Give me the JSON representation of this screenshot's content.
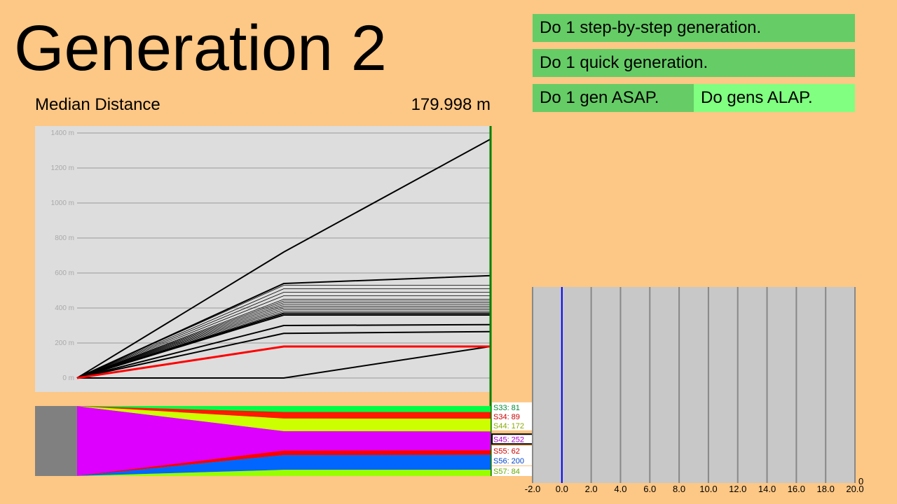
{
  "header": {
    "title": "Generation 2"
  },
  "buttons": {
    "step": "Do 1 step-by-step generation.",
    "quick": "Do 1 quick generation.",
    "asap": "Do 1 gen ASAP.",
    "alap": "Do gens ALAP."
  },
  "stats": {
    "median_label": "Median Distance",
    "median_value": "179.998 m"
  },
  "colors": {
    "background": "#FDC785",
    "button": "#66CC66",
    "button_active": "#80FF80",
    "chart_bg": "#DDDDDD",
    "species_bg": "#808080",
    "histogram_bg": "#C8C8C8",
    "median_line": "#FF0000",
    "current_gen_marker": "#008000",
    "histogram_marker": "#0000FF"
  },
  "chart_data": [
    {
      "type": "line",
      "title": "",
      "x": [
        0,
        1,
        2
      ],
      "ylabel": "",
      "yticks": [
        "0 m",
        "200 m",
        "400 m",
        "600 m",
        "800 m",
        "1000 m",
        "1200 m",
        "1400 m"
      ],
      "ylim": [
        0,
        1440
      ],
      "series": [
        {
          "values": [
            0,
            720,
            1365
          ],
          "style": "thick"
        },
        {
          "values": [
            0,
            540,
            585
          ],
          "style": "thick"
        },
        {
          "values": [
            0,
            530,
            530
          ],
          "style": "thin"
        },
        {
          "values": [
            0,
            510,
            510
          ],
          "style": "thin"
        },
        {
          "values": [
            0,
            490,
            490
          ],
          "style": "thin"
        },
        {
          "values": [
            0,
            470,
            470
          ],
          "style": "thin"
        },
        {
          "values": [
            0,
            450,
            450
          ],
          "style": "thin"
        },
        {
          "values": [
            0,
            440,
            440
          ],
          "style": "thin"
        },
        {
          "values": [
            0,
            430,
            430
          ],
          "style": "thin"
        },
        {
          "values": [
            0,
            420,
            420
          ],
          "style": "thin"
        },
        {
          "values": [
            0,
            410,
            410
          ],
          "style": "thin"
        },
        {
          "values": [
            0,
            400,
            400
          ],
          "style": "thin"
        },
        {
          "values": [
            0,
            390,
            390
          ],
          "style": "thin"
        },
        {
          "values": [
            0,
            380,
            380
          ],
          "style": "thin"
        },
        {
          "values": [
            0,
            370,
            370
          ],
          "style": "thick"
        },
        {
          "values": [
            0,
            360,
            360
          ],
          "style": "thick"
        },
        {
          "values": [
            0,
            300,
            305
          ],
          "style": "thick"
        },
        {
          "values": [
            0,
            255,
            265
          ],
          "style": "thick"
        },
        {
          "values": [
            0,
            0,
            180
          ],
          "style": "thick"
        },
        {
          "values": [
            0,
            180,
            180
          ],
          "style": "median"
        }
      ]
    },
    {
      "type": "area",
      "title": "",
      "x": [
        0,
        1,
        2
      ],
      "species": [
        {
          "label": "S33: 81",
          "color": "#00FF44",
          "text_color": "#008833",
          "values": [
            1,
            81,
            81
          ]
        },
        {
          "label": "S34: 89",
          "color": "#FF1A00",
          "text_color": "#CC0000",
          "values": [
            1,
            89,
            89
          ]
        },
        {
          "label": "S44: 172",
          "color": "#CCFF00",
          "text_color": "#88AA00",
          "values": [
            1,
            172,
            172
          ]
        },
        {
          "label": "S45: 252",
          "color": "#DD00FF",
          "text_color": "#AA00CC",
          "values": [
            994,
            262,
            252
          ],
          "selected": true
        },
        {
          "label": "S55: 62",
          "color": "#FF0000",
          "text_color": "#CC0000",
          "values": [
            1,
            62,
            62
          ]
        },
        {
          "label": "S56: 200",
          "color": "#0066FF",
          "text_color": "#0044CC",
          "values": [
            1,
            200,
            200
          ]
        },
        {
          "label": "S57: 84",
          "color": "#99FF00",
          "text_color": "#66AA00",
          "values": [
            1,
            84,
            84
          ]
        }
      ]
    },
    {
      "type": "bar",
      "title": "",
      "xlim": [
        -2.0,
        20.0
      ],
      "xticks": [
        "-2.0",
        "0.0",
        "2.0",
        "4.0",
        "6.0",
        "8.0",
        "10.0",
        "12.0",
        "14.0",
        "16.0",
        "18.0",
        "20.0"
      ],
      "values": [],
      "count_label": "0",
      "marker_x": 0.0
    }
  ]
}
